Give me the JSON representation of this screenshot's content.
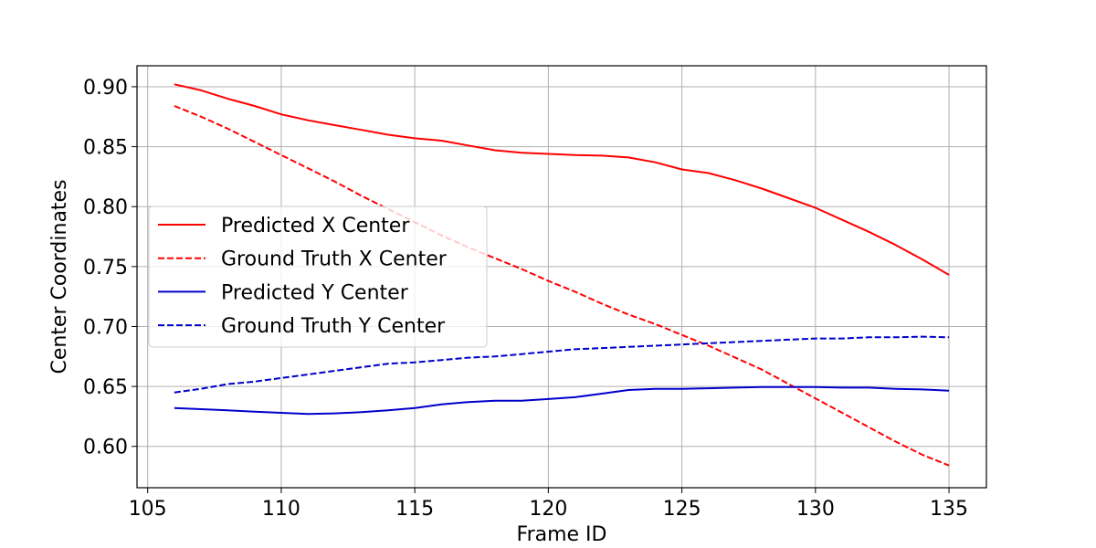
{
  "chart_data": {
    "type": "line",
    "xlabel": "Frame ID",
    "ylabel": "Center Coordinates",
    "xlim": [
      104.6,
      136.4
    ],
    "ylim": [
      0.5655,
      0.9175
    ],
    "xticks": [
      105,
      110,
      115,
      120,
      125,
      130,
      135
    ],
    "xtick_labels": [
      "105",
      "110",
      "115",
      "120",
      "125",
      "130",
      "135"
    ],
    "yticks": [
      0.6,
      0.65,
      0.7,
      0.75,
      0.8,
      0.85,
      0.9
    ],
    "ytick_labels": [
      "0.60",
      "0.65",
      "0.70",
      "0.75",
      "0.80",
      "0.85",
      "0.90"
    ],
    "grid": true,
    "legend_position": "center-left",
    "x": [
      106,
      107,
      108,
      109,
      110,
      111,
      112,
      113,
      114,
      115,
      116,
      117,
      118,
      119,
      120,
      121,
      122,
      123,
      124,
      125,
      126,
      127,
      128,
      129,
      130,
      131,
      132,
      133,
      134,
      135
    ],
    "series": [
      {
        "name": "Predicted X Center",
        "color": "#ff0000",
        "dash": "solid",
        "values": [
          0.902,
          0.897,
          0.89,
          0.884,
          0.877,
          0.872,
          0.868,
          0.864,
          0.86,
          0.857,
          0.855,
          0.851,
          0.847,
          0.845,
          0.844,
          0.843,
          0.8425,
          0.841,
          0.837,
          0.831,
          0.828,
          0.822,
          0.815,
          0.807,
          0.799,
          0.789,
          0.779,
          0.768,
          0.756,
          0.743
        ]
      },
      {
        "name": "Ground Truth X Center",
        "color": "#ff0000",
        "dash": "dashed",
        "values": [
          0.884,
          0.875,
          0.865,
          0.854,
          0.843,
          0.832,
          0.821,
          0.809,
          0.798,
          0.787,
          0.776,
          0.766,
          0.757,
          0.748,
          0.738,
          0.729,
          0.719,
          0.71,
          0.702,
          0.693,
          0.684,
          0.674,
          0.664,
          0.652,
          0.64,
          0.628,
          0.616,
          0.604,
          0.593,
          0.584
        ]
      },
      {
        "name": "Predicted Y Center",
        "color": "#0000cc",
        "dash": "solid",
        "values": [
          0.632,
          0.631,
          0.63,
          0.629,
          0.628,
          0.627,
          0.6275,
          0.6285,
          0.63,
          0.632,
          0.635,
          0.637,
          0.638,
          0.638,
          0.6395,
          0.641,
          0.644,
          0.647,
          0.648,
          0.648,
          0.6485,
          0.649,
          0.6495,
          0.6495,
          0.6495,
          0.649,
          0.649,
          0.648,
          0.6475,
          0.6465
        ]
      },
      {
        "name": "Ground Truth Y Center",
        "color": "#0000cc",
        "dash": "dashed",
        "values": [
          0.645,
          0.648,
          0.652,
          0.654,
          0.657,
          0.66,
          0.663,
          0.666,
          0.669,
          0.67,
          0.672,
          0.674,
          0.675,
          0.677,
          0.679,
          0.681,
          0.682,
          0.683,
          0.684,
          0.685,
          0.686,
          0.687,
          0.688,
          0.689,
          0.69,
          0.69,
          0.691,
          0.691,
          0.6915,
          0.691
        ]
      }
    ]
  }
}
